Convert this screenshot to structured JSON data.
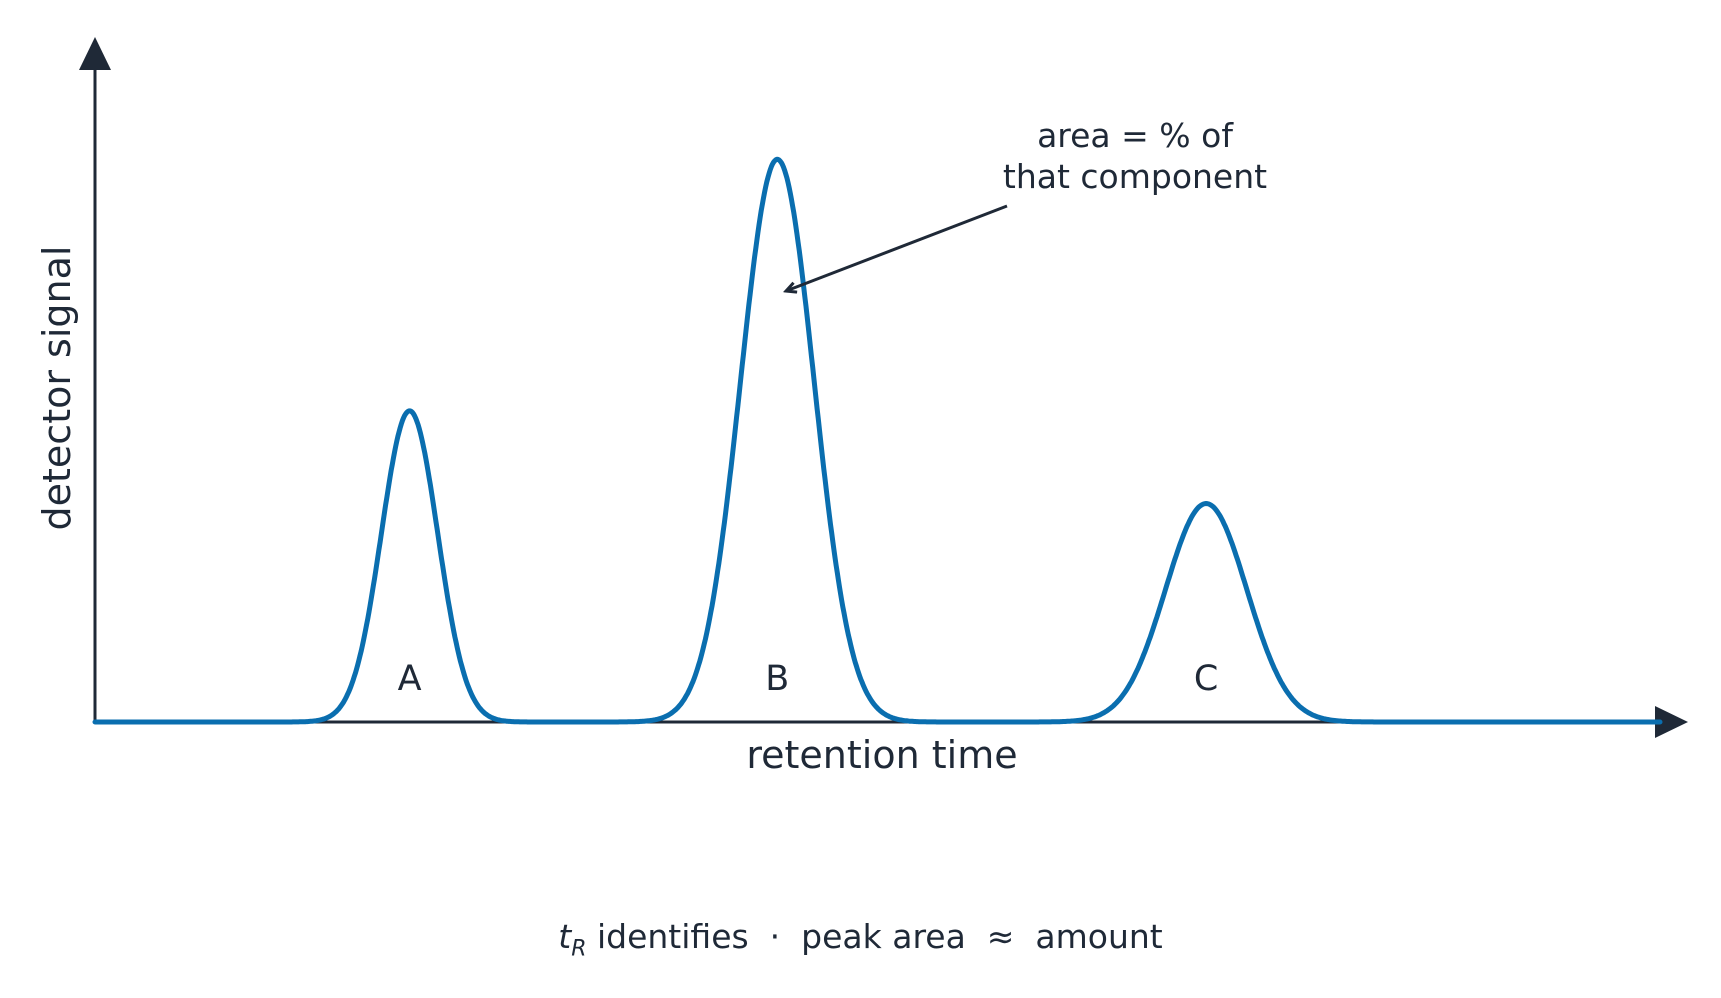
{
  "chart_data": {
    "type": "line",
    "title": "",
    "xlabel": "retention time",
    "ylabel": "detector signal",
    "x_ticks": false,
    "y_ticks": false,
    "grid": false,
    "line_color": "#0a6eaf",
    "axis_color": "#1f2937",
    "xlim": [
      0,
      100
    ],
    "ylim": [
      0,
      1
    ],
    "peaks": [
      {
        "label": "A",
        "center": 20.1,
        "height": 0.47,
        "width": 1.8
      },
      {
        "label": "B",
        "center": 43.6,
        "height": 0.85,
        "width": 2.35
      },
      {
        "label": "C",
        "center": 71.0,
        "height": 0.33,
        "width": 2.6
      }
    ],
    "annotation": {
      "lines": [
        "area = % of",
        "that component"
      ],
      "target_peak": "B"
    }
  },
  "caption": {
    "symbol": "t",
    "subscript": "R",
    "rest": " identifies  ·  peak area  ≈  amount"
  }
}
